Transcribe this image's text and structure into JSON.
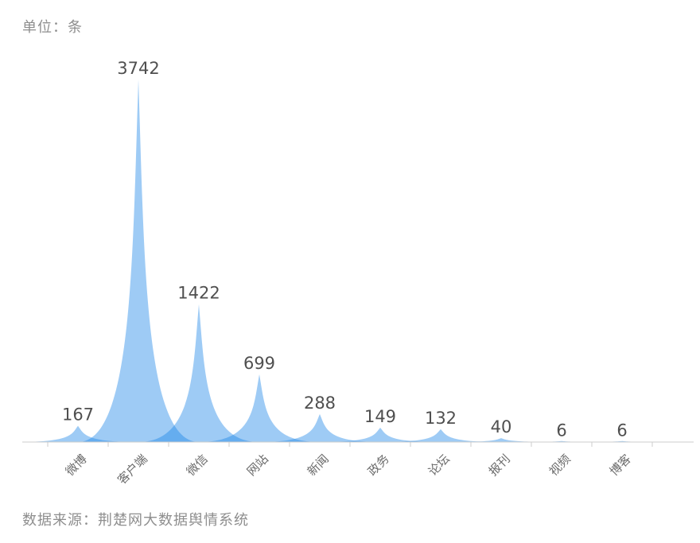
{
  "header": {
    "unit_label": "单位：条"
  },
  "footer": {
    "source_label": "数据来源：荆楚网大数据舆情系统"
  },
  "chart_data": {
    "type": "bar",
    "style": "pictorial-peak-spikes",
    "title": "",
    "xlabel": "",
    "ylabel": "",
    "unit": "条",
    "categories": [
      "微博",
      "客户端",
      "微信",
      "网站",
      "新闻",
      "政务",
      "论坛",
      "报刊",
      "视频",
      "博客"
    ],
    "values": [
      167,
      3742,
      1422,
      699,
      288,
      149,
      132,
      40,
      6,
      6
    ],
    "ylim": [
      0,
      3742
    ],
    "grid": false,
    "legend": null,
    "value_labels_shown": true,
    "category_label_rotation_deg": 45,
    "colors": {
      "peak_fill": "#1984E6",
      "peak_opacity": "0.42",
      "axis_line": "#cccccc",
      "value_label": "#4f4f4f",
      "category_label": "#6b6b6b",
      "annotation_text": "#8e8e8e",
      "background": "#ffffff"
    },
    "source": "荆楚网大数据舆情系统"
  }
}
